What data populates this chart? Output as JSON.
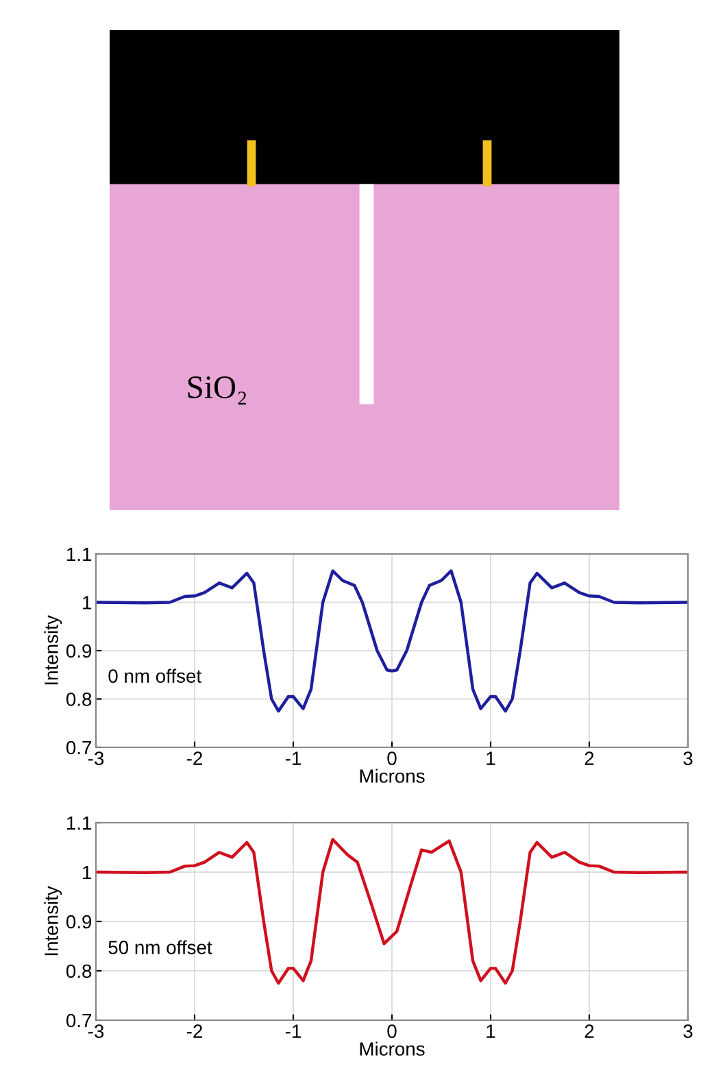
{
  "chart_data": [
    {
      "type": "other",
      "annotations": [
        "SiO₂"
      ]
    },
    {
      "type": "line",
      "xlabel": "Microns",
      "ylabel": "Intensity",
      "annotations": [
        "0 nm offset"
      ],
      "xlim": [
        -3,
        3
      ],
      "ylim": [
        0.7,
        1.1
      ],
      "xticks": [
        -3,
        -2,
        -1,
        0,
        1,
        2,
        3
      ],
      "yticks": [
        0.7,
        0.8,
        0.9,
        1,
        1.1
      ],
      "grid": true,
      "line_style": "solid",
      "series": [
        {
          "color": "#1f1f9e",
          "x": [
            -3,
            -2.5,
            -2.25,
            -2.1,
            -2.0,
            -1.9,
            -1.75,
            -1.62,
            -1.47,
            -1.4,
            -1.3,
            -1.22,
            -1.15,
            -1.05,
            -1.0,
            -0.9,
            -0.82,
            -0.7,
            -0.6,
            -0.5,
            -0.38,
            -0.3,
            -0.15,
            -0.05,
            0,
            0.05,
            0.15,
            0.3,
            0.38,
            0.5,
            0.6,
            0.7,
            0.82,
            0.9,
            1.0,
            1.05,
            1.15,
            1.22,
            1.3,
            1.4,
            1.47,
            1.62,
            1.75,
            1.9,
            2.0,
            2.1,
            2.25,
            2.5,
            3
          ],
          "values": [
            1.0,
            0.999,
            1.0,
            1.012,
            1.013,
            1.02,
            1.04,
            1.03,
            1.06,
            1.04,
            0.9,
            0.8,
            0.775,
            0.805,
            0.805,
            0.78,
            0.82,
            1.0,
            1.065,
            1.045,
            1.035,
            1.0,
            0.9,
            0.86,
            0.858,
            0.86,
            0.9,
            1.0,
            1.035,
            1.045,
            1.065,
            1.0,
            0.82,
            0.78,
            0.805,
            0.805,
            0.775,
            0.8,
            0.9,
            1.04,
            1.06,
            1.03,
            1.04,
            1.02,
            1.013,
            1.012,
            1.0,
            0.999,
            1.0
          ]
        }
      ]
    },
    {
      "type": "line",
      "xlabel": "Microns",
      "ylabel": "Intensity",
      "annotations": [
        "50 nm offset"
      ],
      "xlim": [
        -3,
        3
      ],
      "ylim": [
        0.7,
        1.1
      ],
      "xticks": [
        -3,
        -2,
        -1,
        0,
        1,
        2,
        3
      ],
      "yticks": [
        0.7,
        0.8,
        0.9,
        1,
        1.1
      ],
      "grid": true,
      "line_style": "solid",
      "series": [
        {
          "color": "#d0101e",
          "x": [
            -3,
            -2.5,
            -2.25,
            -2.1,
            -2.0,
            -1.9,
            -1.75,
            -1.62,
            -1.47,
            -1.4,
            -1.3,
            -1.22,
            -1.15,
            -1.05,
            -1.0,
            -0.9,
            -0.82,
            -0.7,
            -0.6,
            -0.45,
            -0.35,
            -0.2,
            -0.08,
            0.05,
            0.2,
            0.3,
            0.4,
            0.58,
            0.7,
            0.82,
            0.9,
            1.0,
            1.05,
            1.15,
            1.22,
            1.3,
            1.4,
            1.47,
            1.62,
            1.75,
            1.9,
            2.0,
            2.1,
            2.25,
            2.5,
            3
          ],
          "values": [
            1.0,
            0.999,
            1.0,
            1.012,
            1.013,
            1.02,
            1.04,
            1.03,
            1.06,
            1.04,
            0.9,
            0.8,
            0.775,
            0.805,
            0.805,
            0.78,
            0.82,
            1.0,
            1.066,
            1.035,
            1.02,
            0.93,
            0.855,
            0.88,
            0.98,
            1.045,
            1.04,
            1.063,
            1.0,
            0.82,
            0.78,
            0.805,
            0.805,
            0.775,
            0.8,
            0.9,
            1.04,
            1.06,
            1.03,
            1.04,
            1.02,
            1.013,
            1.012,
            1.0,
            0.999,
            1.0
          ]
        }
      ]
    }
  ]
}
